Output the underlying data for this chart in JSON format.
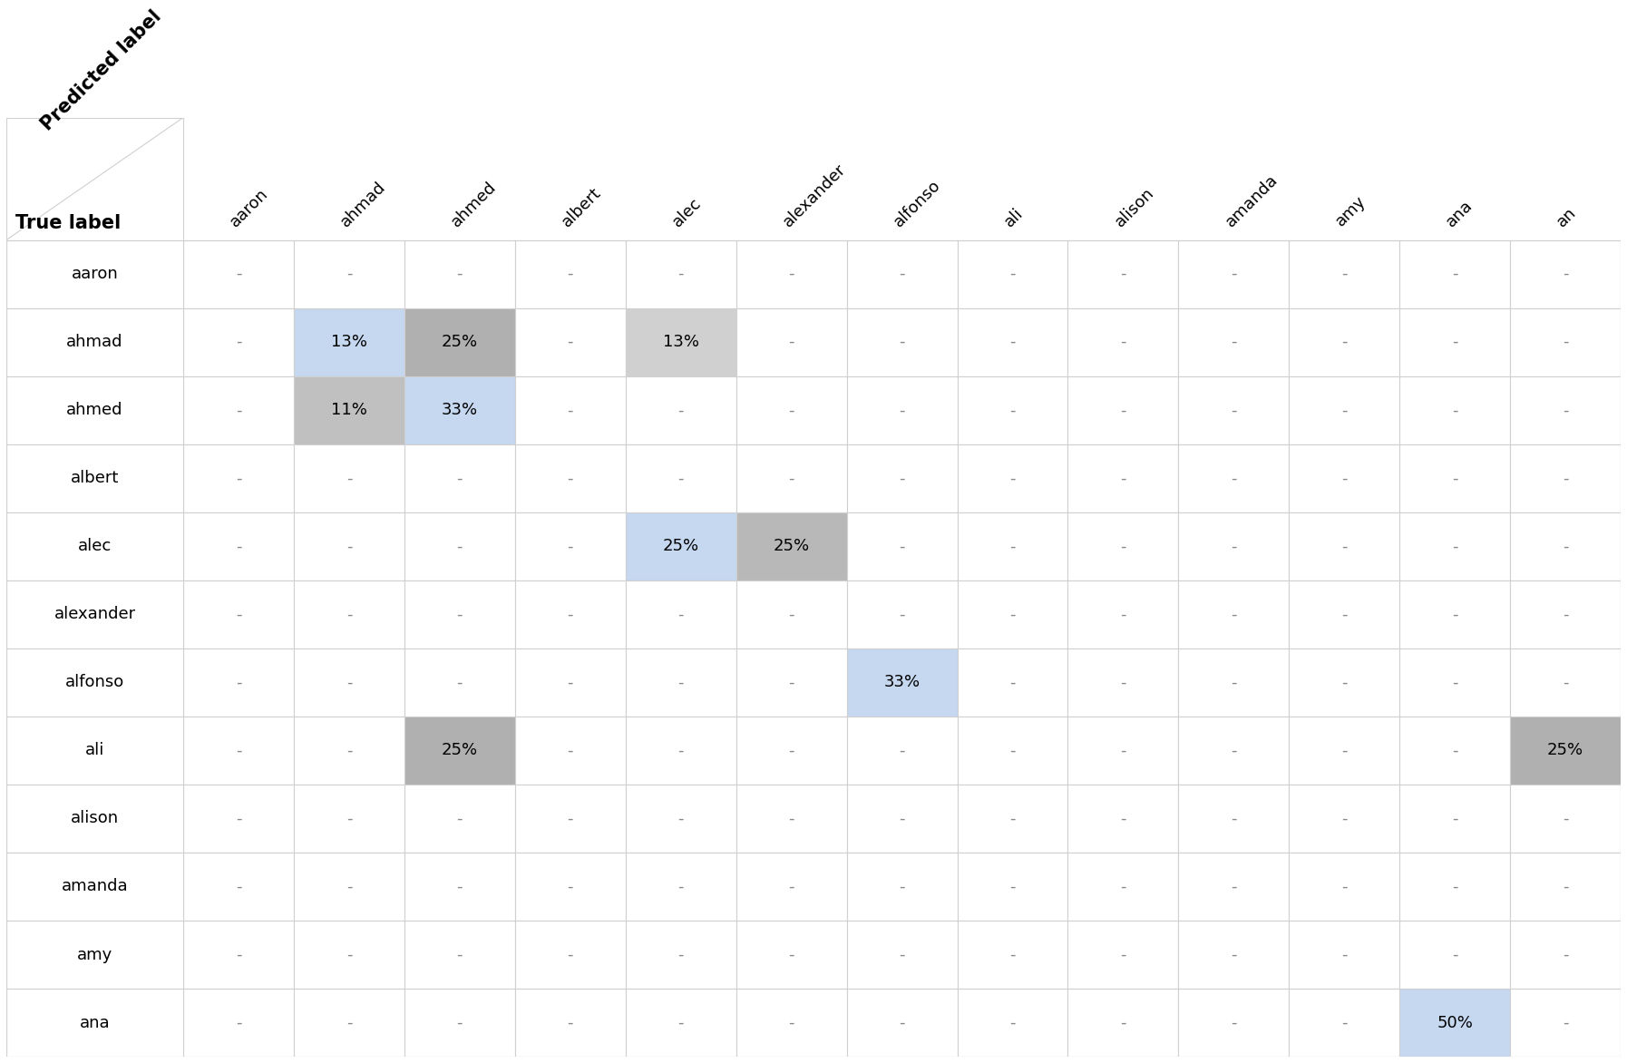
{
  "row_labels": [
    "aaron",
    "ahmad",
    "ahmed",
    "albert",
    "alec",
    "alexander",
    "alfonso",
    "ali",
    "alison",
    "amanda",
    "amy",
    "ana"
  ],
  "col_labels": [
    "aaron",
    "ahmad",
    "ahmed",
    "albert",
    "alec",
    "alexander",
    "alfonso",
    "ali",
    "alison",
    "amanda",
    "amy",
    "ana",
    "an"
  ],
  "predicted_label_header": "Predicted label",
  "true_label_header": "True label",
  "cell_values": [
    [
      null,
      null,
      null,
      null,
      null,
      null,
      null,
      null,
      null,
      null,
      null,
      null,
      null
    ],
    [
      null,
      13,
      25,
      null,
      13,
      null,
      null,
      null,
      null,
      null,
      null,
      null,
      null
    ],
    [
      null,
      11,
      33,
      null,
      null,
      null,
      null,
      null,
      null,
      null,
      null,
      null,
      null
    ],
    [
      null,
      null,
      null,
      null,
      null,
      null,
      null,
      null,
      null,
      null,
      null,
      null,
      null
    ],
    [
      null,
      null,
      null,
      null,
      25,
      25,
      null,
      null,
      null,
      null,
      null,
      null,
      null
    ],
    [
      null,
      null,
      null,
      null,
      null,
      null,
      null,
      null,
      null,
      null,
      null,
      null,
      null
    ],
    [
      null,
      null,
      null,
      null,
      null,
      null,
      33,
      null,
      null,
      null,
      null,
      null,
      null
    ],
    [
      null,
      null,
      25,
      null,
      null,
      null,
      null,
      null,
      null,
      null,
      null,
      null,
      25
    ],
    [
      null,
      null,
      null,
      null,
      null,
      null,
      null,
      null,
      null,
      null,
      null,
      null,
      null
    ],
    [
      null,
      null,
      null,
      null,
      null,
      null,
      null,
      null,
      null,
      null,
      null,
      null,
      null
    ],
    [
      null,
      null,
      null,
      null,
      null,
      null,
      null,
      null,
      null,
      null,
      null,
      null,
      null
    ],
    [
      null,
      null,
      null,
      null,
      null,
      null,
      null,
      null,
      null,
      null,
      null,
      50,
      null
    ]
  ],
  "cell_colors": [
    [
      "white",
      "white",
      "white",
      "white",
      "white",
      "white",
      "white",
      "white",
      "white",
      "white",
      "white",
      "white",
      "white"
    ],
    [
      "white",
      "#c5d8f0",
      "#b0b0b0",
      "white",
      "#d0d0d0",
      "white",
      "white",
      "white",
      "white",
      "white",
      "white",
      "white",
      "white"
    ],
    [
      "white",
      "#c0c0c0",
      "#c5d8f0",
      "white",
      "white",
      "white",
      "white",
      "white",
      "white",
      "white",
      "white",
      "white",
      "white"
    ],
    [
      "white",
      "white",
      "white",
      "white",
      "white",
      "white",
      "white",
      "white",
      "white",
      "white",
      "white",
      "white",
      "white"
    ],
    [
      "white",
      "white",
      "white",
      "white",
      "#c5d8f0",
      "#b8b8b8",
      "white",
      "white",
      "white",
      "white",
      "white",
      "white",
      "white"
    ],
    [
      "white",
      "white",
      "white",
      "white",
      "white",
      "white",
      "white",
      "white",
      "white",
      "white",
      "white",
      "white",
      "white"
    ],
    [
      "white",
      "white",
      "white",
      "white",
      "white",
      "white",
      "#c5d8f0",
      "white",
      "white",
      "white",
      "white",
      "white",
      "white"
    ],
    [
      "white",
      "white",
      "#b0b0b0",
      "white",
      "white",
      "white",
      "white",
      "white",
      "white",
      "white",
      "white",
      "white",
      "#b0b0b0"
    ],
    [
      "white",
      "white",
      "white",
      "white",
      "white",
      "white",
      "white",
      "white",
      "white",
      "white",
      "white",
      "white",
      "white"
    ],
    [
      "white",
      "white",
      "white",
      "white",
      "white",
      "white",
      "white",
      "white",
      "white",
      "white",
      "white",
      "white",
      "white"
    ],
    [
      "white",
      "white",
      "white",
      "white",
      "white",
      "white",
      "white",
      "white",
      "white",
      "white",
      "white",
      "white",
      "white"
    ],
    [
      "white",
      "white",
      "white",
      "white",
      "white",
      "white",
      "white",
      "white",
      "white",
      "white",
      "white",
      "#c5d8f0",
      "white"
    ]
  ],
  "background_color": "#ffffff",
  "grid_color": "#d0d0d0",
  "text_color": "#000000",
  "dash_color": "#888888",
  "cell_fontsize": 13,
  "label_fontsize": 13,
  "header_fontsize": 15,
  "col_header_rotation": 45,
  "fig_width": 17.94,
  "fig_height": 11.72
}
